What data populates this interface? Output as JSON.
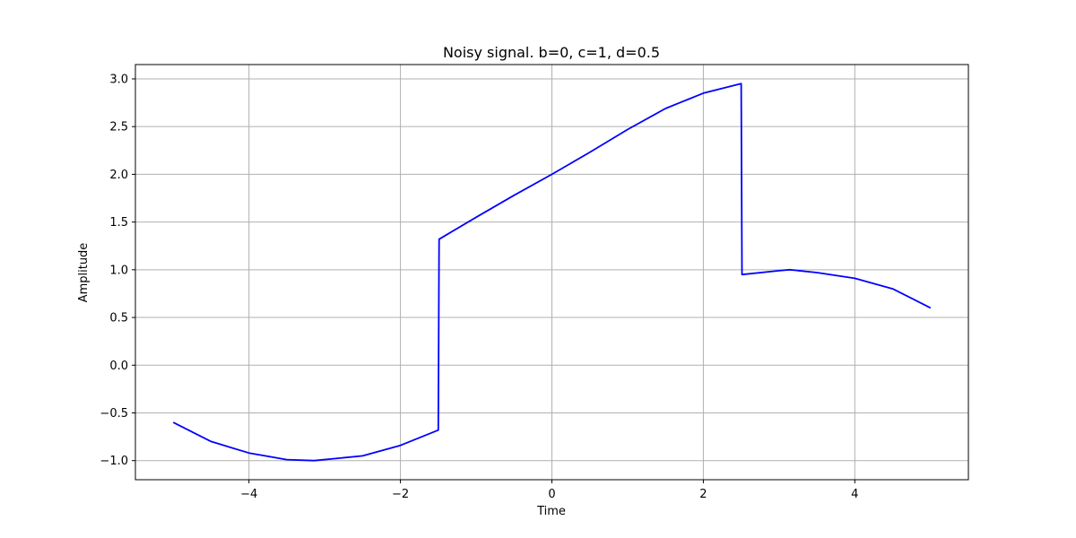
{
  "chart_data": {
    "type": "line",
    "title": "Noisy signal. b=0, c=1, d=0.5",
    "xlabel": "Time",
    "ylabel": "Amplitude",
    "xlim": [
      -5.5,
      5.5
    ],
    "ylim": [
      -1.2,
      3.15
    ],
    "xticks": [
      -4,
      -2,
      0,
      2,
      4
    ],
    "xtick_labels": [
      "−4",
      "−2",
      "0",
      "2",
      "4"
    ],
    "yticks": [
      -1.0,
      -0.5,
      0.0,
      0.5,
      1.0,
      1.5,
      2.0,
      2.5,
      3.0
    ],
    "ytick_labels": [
      "−1.0",
      "−0.5",
      "0.0",
      "0.5",
      "1.0",
      "1.5",
      "2.0",
      "2.5",
      "3.0"
    ],
    "grid": true,
    "line_color": "#0000ff",
    "series": [
      {
        "x": [
          -5.0,
          -4.5,
          -4.0,
          -3.5,
          -3.14,
          -2.5,
          -2.0,
          -1.5,
          -1.49,
          -1.0,
          -0.5,
          0.0,
          0.5,
          1.0,
          1.5,
          2.0,
          2.5,
          2.51,
          3.0,
          3.14,
          3.5,
          4.0,
          4.5,
          5.0
        ],
        "y": [
          -0.6,
          -0.8,
          -0.92,
          -0.99,
          -1.0,
          -0.95,
          -0.84,
          -0.68,
          1.32,
          1.55,
          1.78,
          2.0,
          2.23,
          2.47,
          2.69,
          2.85,
          2.95,
          0.95,
          0.99,
          1.0,
          0.97,
          0.91,
          0.8,
          0.6
        ]
      }
    ]
  }
}
